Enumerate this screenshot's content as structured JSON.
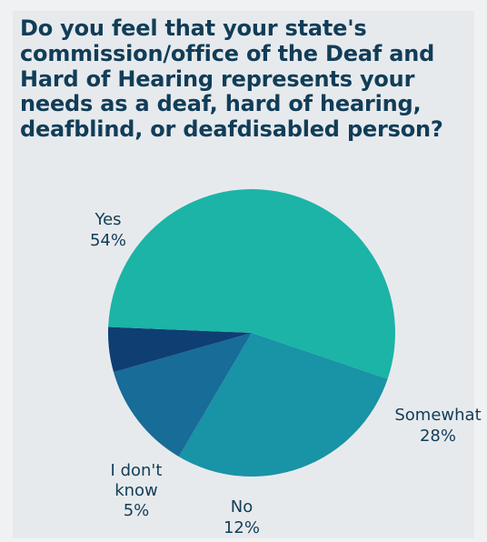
{
  "title": "Do you feel that your state's commission/office of the Deaf and Hard of Hearing represents your needs as a deaf, hard of hearing, deafblind, or deafdisabled person?",
  "chart_data": {
    "type": "pie",
    "title": "Do you feel that your state's commission/office of the Deaf and Hard of Hearing represents your needs as a deaf, hard of hearing, deafblind, or deafdisabled person?",
    "slices": [
      {
        "label": "Yes",
        "value": 54,
        "value_label": "54%",
        "color": "#1bb4a7"
      },
      {
        "label": "Somewhat",
        "value": 28,
        "value_label": "28%",
        "color": "#1993a6"
      },
      {
        "label": "No",
        "value": 12,
        "value_label": "12%",
        "color": "#176c98"
      },
      {
        "label": "I don't know",
        "value": 5,
        "value_label": "5%",
        "color": "#0f3e73"
      }
    ]
  }
}
